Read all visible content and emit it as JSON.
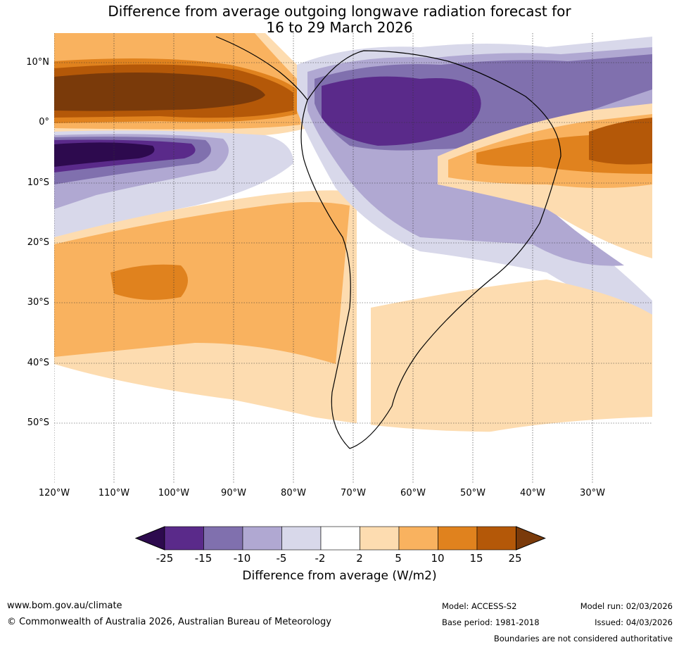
{
  "title": {
    "line1": "Difference from average outgoing longwave radiation forecast for",
    "line2": "16 to 29 March 2026"
  },
  "map": {
    "lat_labels": [
      "10°N",
      "0°",
      "10°S",
      "20°S",
      "30°S",
      "40°S",
      "50°S"
    ],
    "lon_labels": [
      "120°W",
      "110°W",
      "100°W",
      "90°W",
      "80°W",
      "70°W",
      "60°W",
      "50°W",
      "40°W",
      "30°W"
    ]
  },
  "legend": {
    "ticks": [
      "-25",
      "-15",
      "-10",
      "-5",
      "-2",
      "2",
      "5",
      "10",
      "15",
      "25"
    ],
    "colors": [
      "#2d0a4e",
      "#5a2a8a",
      "#8070ae",
      "#b0a8d2",
      "#d8d8ea",
      "#ffffff",
      "#fddcb0",
      "#f9b25f",
      "#e0821e",
      "#b45808",
      "#7a3a0a"
    ],
    "title": "Difference from average (W/m2)"
  },
  "footer": {
    "website": "www.bom.gov.au/climate",
    "copyright": "© Commonwealth of Australia 2026, Australian Bureau of Meteorology",
    "model": "Model: ACCESS-S2",
    "base_period": "Base period: 1981-2018",
    "model_run": "Model run: 02/03/2026",
    "issued": "Issued: 04/03/2026",
    "disclaimer": "Boundaries are not considered authoritative"
  }
}
